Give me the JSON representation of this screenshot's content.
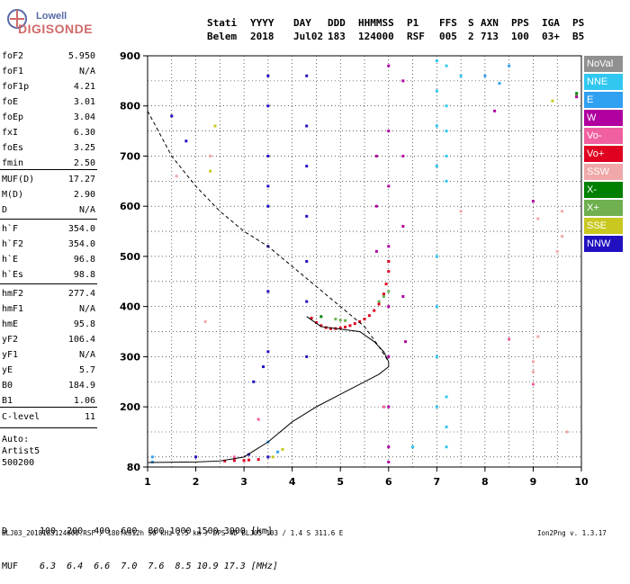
{
  "logo": {
    "line1": "Lowell",
    "line2": "DIGISONDE"
  },
  "header": {
    "labels": [
      "Stati",
      "YYYY",
      "DAY",
      "DDD",
      "HHMMSS",
      "P1",
      "FFS",
      "S",
      "AXN",
      "PPS",
      "IGA",
      "PS"
    ],
    "values": [
      "Belem",
      "2018",
      "Jul02",
      "183",
      "124000",
      "RSF",
      "005",
      "2",
      "713",
      "100",
      "03+",
      "B5"
    ]
  },
  "params_group1": [
    {
      "label": "foF2",
      "value": "5.950"
    },
    {
      "label": "foF1",
      "value": "N/A"
    },
    {
      "label": "foF1p",
      "value": "4.21"
    },
    {
      "label": "foE",
      "value": "3.01"
    },
    {
      "label": "foEp",
      "value": "3.04"
    },
    {
      "label": "fxI",
      "value": "6.30"
    },
    {
      "label": "foEs",
      "value": "3.25"
    },
    {
      "label": "fmin",
      "value": "2.50"
    }
  ],
  "params_group2": [
    {
      "label": "MUF(D)",
      "value": "17.27"
    },
    {
      "label": "M(D)",
      "value": "2.90"
    },
    {
      "label": "D",
      "value": "N/A"
    }
  ],
  "params_group3": [
    {
      "label": "h`F",
      "value": "354.0"
    },
    {
      "label": "h`F2",
      "value": "354.0"
    },
    {
      "label": "h`E",
      "value": "96.8"
    },
    {
      "label": "h`Es",
      "value": "98.8"
    }
  ],
  "params_group4": [
    {
      "label": "hmF2",
      "value": "277.4"
    },
    {
      "label": "hmF1",
      "value": "N/A"
    },
    {
      "label": "hmE",
      "value": "95.8"
    },
    {
      "label": "yF2",
      "value": "106.4"
    },
    {
      "label": "yF1",
      "value": "N/A"
    },
    {
      "label": "yE",
      "value": "5.7"
    },
    {
      "label": "B0",
      "value": "184.9"
    },
    {
      "label": "B1",
      "value": "1.06"
    }
  ],
  "params_group5": [
    {
      "label": "C-level",
      "value": "11"
    }
  ],
  "auto_info": {
    "line1": "Auto:",
    "line2": "Artist5",
    "line3": "500200"
  },
  "legend": [
    {
      "label": "NoVal",
      "color": "#909090"
    },
    {
      "label": "NNE",
      "color": "#30c8f0"
    },
    {
      "label": "E",
      "color": "#30a0f0"
    },
    {
      "label": "W",
      "color": "#b000a0"
    },
    {
      "label": "Vo-",
      "color": "#f060a0"
    },
    {
      "label": "Vo+",
      "color": "#e00020"
    },
    {
      "label": "SSW",
      "color": "#f0a8a8"
    },
    {
      "label": "X-",
      "color": "#008000"
    },
    {
      "label": "X+",
      "color": "#70b050"
    },
    {
      "label": "SSE",
      "color": "#c8c820"
    },
    {
      "label": "NNW",
      "color": "#2010c0"
    }
  ],
  "chart_data": {
    "type": "scatter",
    "xlim": [
      1,
      10
    ],
    "ylim": [
      80,
      900
    ],
    "x_ticks": [
      1,
      2,
      3,
      4,
      5,
      6,
      7,
      8,
      9,
      10
    ],
    "y_ticks": [
      80,
      200,
      300,
      400,
      500,
      600,
      700,
      800,
      900
    ],
    "grid": true,
    "dashed_profile": [
      [
        1.0,
        790
      ],
      [
        1.5,
        700
      ],
      [
        2.0,
        640
      ],
      [
        2.5,
        590
      ],
      [
        3.0,
        550
      ],
      [
        3.5,
        520
      ],
      [
        4.0,
        480
      ],
      [
        4.5,
        440
      ],
      [
        5.0,
        400
      ],
      [
        5.5,
        360
      ],
      [
        5.8,
        320
      ],
      [
        6.0,
        290
      ]
    ],
    "solid_profile": [
      [
        1.0,
        89
      ],
      [
        2.0,
        90
      ],
      [
        2.5,
        92
      ],
      [
        3.0,
        100
      ],
      [
        3.5,
        130
      ],
      [
        4.0,
        170
      ],
      [
        4.5,
        200
      ],
      [
        5.0,
        225
      ],
      [
        5.5,
        250
      ],
      [
        5.8,
        265
      ],
      [
        6.0,
        280
      ],
      [
        6.0,
        290
      ],
      [
        5.9,
        310
      ],
      [
        5.7,
        330
      ],
      [
        5.4,
        350
      ],
      [
        5.0,
        355
      ],
      [
        4.6,
        360
      ],
      [
        4.3,
        380
      ]
    ],
    "traces": [
      {
        "color": "#e00020",
        "points": [
          [
            4.4,
            377
          ],
          [
            4.5,
            368
          ],
          [
            4.6,
            362
          ],
          [
            4.7,
            358
          ],
          [
            4.8,
            356
          ],
          [
            4.9,
            356
          ],
          [
            5.0,
            357
          ],
          [
            5.1,
            359
          ],
          [
            5.2,
            362
          ],
          [
            5.3,
            366
          ],
          [
            5.4,
            370
          ],
          [
            5.5,
            375
          ],
          [
            5.6,
            382
          ],
          [
            5.7,
            392
          ],
          [
            5.8,
            405
          ],
          [
            5.9,
            425
          ],
          [
            5.95,
            445
          ],
          [
            6.0,
            470
          ],
          [
            6.0,
            490
          ],
          [
            3.0,
            93
          ],
          [
            3.1,
            94
          ],
          [
            3.3,
            95
          ],
          [
            2.6,
            92
          ],
          [
            2.8,
            93
          ]
        ]
      },
      {
        "color": "#70b050",
        "points": [
          [
            4.9,
            375
          ],
          [
            5.0,
            373
          ],
          [
            5.1,
            372
          ],
          [
            5.8,
            410
          ],
          [
            5.9,
            420
          ],
          [
            6.0,
            430
          ],
          [
            9.9,
            820
          ]
        ]
      },
      {
        "color": "#2010c0",
        "points": [
          [
            3.5,
            860
          ],
          [
            3.5,
            800
          ],
          [
            3.5,
            700
          ],
          [
            3.5,
            640
          ],
          [
            3.5,
            600
          ],
          [
            3.5,
            520
          ],
          [
            3.5,
            430
          ],
          [
            3.5,
            310
          ],
          [
            3.4,
            280
          ],
          [
            3.2,
            250
          ],
          [
            4.3,
            860
          ],
          [
            4.3,
            760
          ],
          [
            4.3,
            680
          ],
          [
            4.3,
            580
          ],
          [
            4.3,
            490
          ],
          [
            4.3,
            410
          ],
          [
            4.3,
            300
          ],
          [
            3.1,
            105
          ],
          [
            3.5,
            100
          ],
          [
            2.0,
            100
          ],
          [
            1.8,
            730
          ],
          [
            1.5,
            780
          ]
        ]
      },
      {
        "color": "#b000a0",
        "points": [
          [
            6.0,
            880
          ],
          [
            6.0,
            750
          ],
          [
            6.0,
            640
          ],
          [
            6.0,
            520
          ],
          [
            6.0,
            400
          ],
          [
            6.0,
            300
          ],
          [
            6.0,
            200
          ],
          [
            6.0,
            120
          ],
          [
            6.0,
            90
          ],
          [
            5.75,
            700
          ],
          [
            5.75,
            600
          ],
          [
            5.75,
            510
          ],
          [
            6.3,
            850
          ],
          [
            6.3,
            700
          ],
          [
            6.3,
            560
          ],
          [
            6.3,
            420
          ],
          [
            6.35,
            330
          ],
          [
            9.0,
            610
          ],
          [
            8.2,
            790
          ],
          [
            9.9,
            818
          ]
        ]
      },
      {
        "color": "#30c8f0",
        "points": [
          [
            7.0,
            890
          ],
          [
            7.0,
            830
          ],
          [
            7.0,
            760
          ],
          [
            7.0,
            680
          ],
          [
            7.0,
            500
          ],
          [
            7.0,
            400
          ],
          [
            7.0,
            300
          ],
          [
            7.0,
            200
          ],
          [
            7.2,
            880
          ],
          [
            7.2,
            800
          ],
          [
            7.2,
            750
          ],
          [
            7.2,
            700
          ],
          [
            7.2,
            650
          ],
          [
            7.2,
            220
          ],
          [
            7.2,
            160
          ],
          [
            7.2,
            120
          ],
          [
            7.5,
            860
          ],
          [
            6.5,
            120
          ]
        ]
      },
      {
        "color": "#30a0f0",
        "points": [
          [
            8.0,
            860
          ],
          [
            8.3,
            845
          ],
          [
            8.5,
            880
          ],
          [
            1.1,
            100
          ],
          [
            1.1,
            90
          ],
          [
            3.5,
            130
          ],
          [
            3.7,
            110
          ]
        ]
      },
      {
        "color": "#f0a8a8",
        "points": [
          [
            9.1,
            575
          ],
          [
            9.1,
            340
          ],
          [
            9.0,
            290
          ],
          [
            9.0,
            270
          ],
          [
            9.6,
            590
          ],
          [
            9.6,
            540
          ],
          [
            9.5,
            510
          ],
          [
            9.7,
            150
          ],
          [
            1.6,
            660
          ],
          [
            2.3,
            700
          ],
          [
            2.2,
            370
          ],
          [
            7.5,
            590
          ]
        ]
      },
      {
        "color": "#f060a0",
        "points": [
          [
            9.0,
            245
          ],
          [
            8.5,
            335
          ],
          [
            3.3,
            175
          ],
          [
            2.8,
            100
          ],
          [
            5.9,
            200
          ]
        ]
      },
      {
        "color": "#c8c820",
        "points": [
          [
            2.4,
            760
          ],
          [
            2.3,
            670
          ],
          [
            3.8,
            115
          ],
          [
            3.6,
            100
          ],
          [
            9.4,
            810
          ]
        ]
      },
      {
        "color": "#008000",
        "points": [
          [
            9.9,
            825
          ],
          [
            4.6,
            380
          ]
        ]
      }
    ]
  },
  "x_axis_title": "",
  "bottom_table": {
    "row1_label": "D",
    "row1_values": "100  200  400  600  800 1000 1500 3000 [km]",
    "row2_label": "MUF",
    "row2_values": "6.3  6.4  6.6  7.0  7.6  8.5 10.9 17.3 [MHz]"
  },
  "footer": {
    "left": "BLJ03_2018183124000.RSF / 180fx512h 50 kHz 2.5 km / DPS-4D BLJ03 103 / 1.4 S 311.6 E",
    "right": "Ion2Png v. 1.3.17"
  }
}
